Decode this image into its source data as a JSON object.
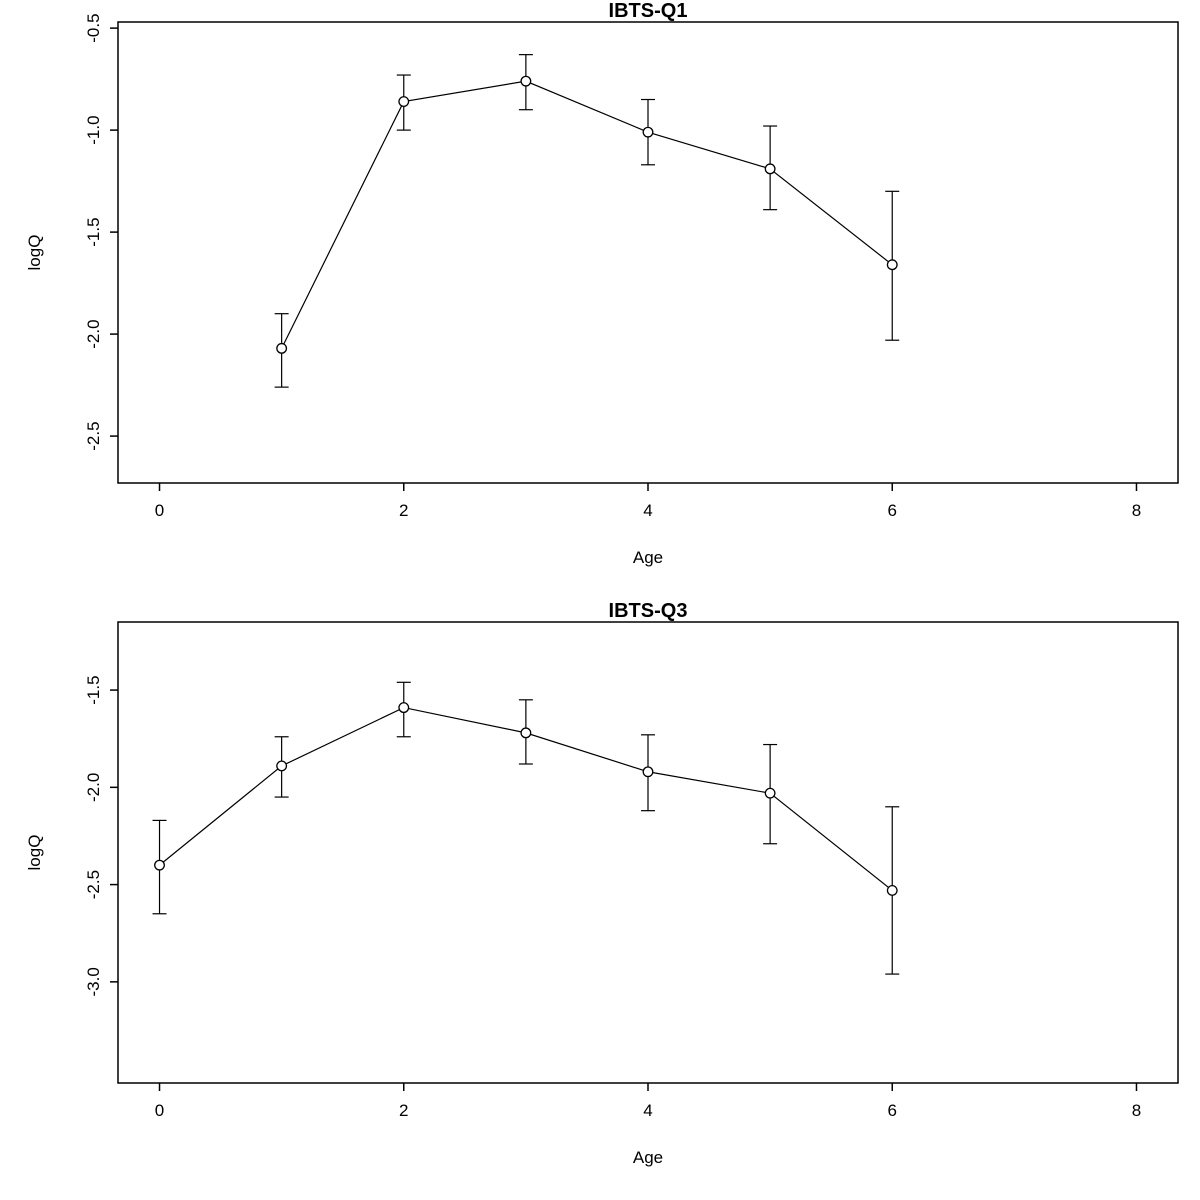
{
  "figure": {
    "background_color": "#ffffff",
    "foreground_color": "#000000",
    "panel_count": 2
  },
  "chart_data": [
    {
      "type": "line",
      "title": "IBTS-Q1",
      "xlabel": "Age",
      "ylabel": "logQ",
      "marker": "open-circle",
      "error_bars": true,
      "grid": false,
      "legend": null,
      "color": "#000000",
      "x": [
        1,
        2,
        3,
        4,
        5,
        6
      ],
      "y": [
        -2.07,
        -0.86,
        -0.76,
        -1.01,
        -1.19,
        -1.66
      ],
      "y_lo": [
        -2.26,
        -1.0,
        -0.9,
        -1.17,
        -1.39,
        -2.03
      ],
      "y_hi": [
        -1.9,
        -0.73,
        -0.63,
        -0.85,
        -0.98,
        -1.3
      ],
      "xlim": [
        -0.34,
        8.34
      ],
      "ylim": [
        -2.73,
        -0.47
      ],
      "xtick_values": [
        0,
        2,
        4,
        6,
        8
      ],
      "xtick_labels": [
        "0",
        "2",
        "4",
        "6",
        "8"
      ],
      "ytick_values": [
        -0.5,
        -1.0,
        -1.5,
        -2.0,
        -2.5
      ],
      "ytick_labels": [
        "-0.5",
        "-1.0",
        "-1.5",
        "-2.0",
        "-2.5"
      ]
    },
    {
      "type": "line",
      "title": "IBTS-Q3",
      "xlabel": "Age",
      "ylabel": "logQ",
      "marker": "open-circle",
      "error_bars": true,
      "grid": false,
      "legend": null,
      "color": "#000000",
      "x": [
        0,
        1,
        2,
        3,
        4,
        5,
        6
      ],
      "y": [
        -2.4,
        -1.89,
        -1.59,
        -1.72,
        -1.92,
        -2.03,
        -2.53
      ],
      "y_lo": [
        -2.65,
        -2.05,
        -1.74,
        -1.88,
        -2.12,
        -2.29,
        -2.96
      ],
      "y_hi": [
        -2.17,
        -1.74,
        -1.46,
        -1.55,
        -1.73,
        -1.78,
        -2.1
      ],
      "xlim": [
        -0.34,
        8.34
      ],
      "ylim": [
        -3.52,
        -1.15
      ],
      "xtick_values": [
        0,
        2,
        4,
        6,
        8
      ],
      "xtick_labels": [
        "0",
        "2",
        "4",
        "6",
        "8"
      ],
      "ytick_values": [
        -1.5,
        -2.0,
        -2.5,
        -3.0
      ],
      "ytick_labels": [
        "-1.5",
        "-2.0",
        "-2.5",
        "-3.0"
      ]
    }
  ]
}
